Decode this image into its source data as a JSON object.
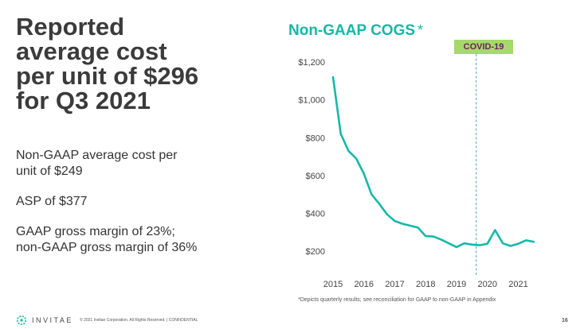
{
  "headline": [
    "Reported",
    "average cost",
    "per unit of $296",
    "for Q3 2021"
  ],
  "bullets": [
    [
      "Non-GAAP average cost per",
      "unit of $249"
    ],
    [
      "ASP of $377"
    ],
    [
      "GAAP gross margin of 23%;",
      "non-GAAP gross margin of 36%"
    ]
  ],
  "chart_data": {
    "type": "line",
    "title": "Non-GAAP COGS",
    "title_suffix": "*",
    "xlabel": "",
    "ylabel": "",
    "y_ticks": [
      "$200",
      "$400",
      "$600",
      "$800",
      "$1,000",
      "$1,200"
    ],
    "x_ticks": [
      "2015",
      "2016",
      "2017",
      "2018",
      "2019",
      "2020",
      "2021"
    ],
    "ylim": [
      100,
      1200
    ],
    "xlim": [
      2015,
      2021.4
    ],
    "grid": false,
    "series": [
      {
        "color": "#16b8a8",
        "x": [
          2015.0,
          2015.25,
          2015.5,
          2015.75,
          2016.0,
          2016.25,
          2016.5,
          2016.75,
          2017.0,
          2017.25,
          2017.5,
          2017.75,
          2018.0,
          2018.25,
          2018.5,
          2018.75,
          2019.0,
          2019.25,
          2019.5,
          2019.75,
          2020.0,
          2020.25,
          2020.5,
          2020.75,
          2021.0,
          2021.25,
          2021.5
        ],
        "y": [
          1120,
          820,
          730,
          690,
          610,
          500,
          450,
          395,
          360,
          345,
          335,
          325,
          280,
          278,
          262,
          242,
          222,
          242,
          235,
          232,
          240,
          312,
          242,
          228,
          240,
          258,
          250
        ]
      }
    ],
    "annotation": {
      "label": "COVID-19",
      "x": 2020.0,
      "line_color": "#4a9fc2",
      "badge_color": "#a6d86a",
      "text_color": "#6b1f5b"
    }
  },
  "footnote": "*Depicts quarterly results; see reconciliation for GAAP to non-GAAP in Appendix",
  "footer": {
    "brand": "INVITAE",
    "copyright": "© 2021 Invitae Corporation. All Rights Reserved.  |  CONFIDENTIAL",
    "page_number": "16"
  }
}
